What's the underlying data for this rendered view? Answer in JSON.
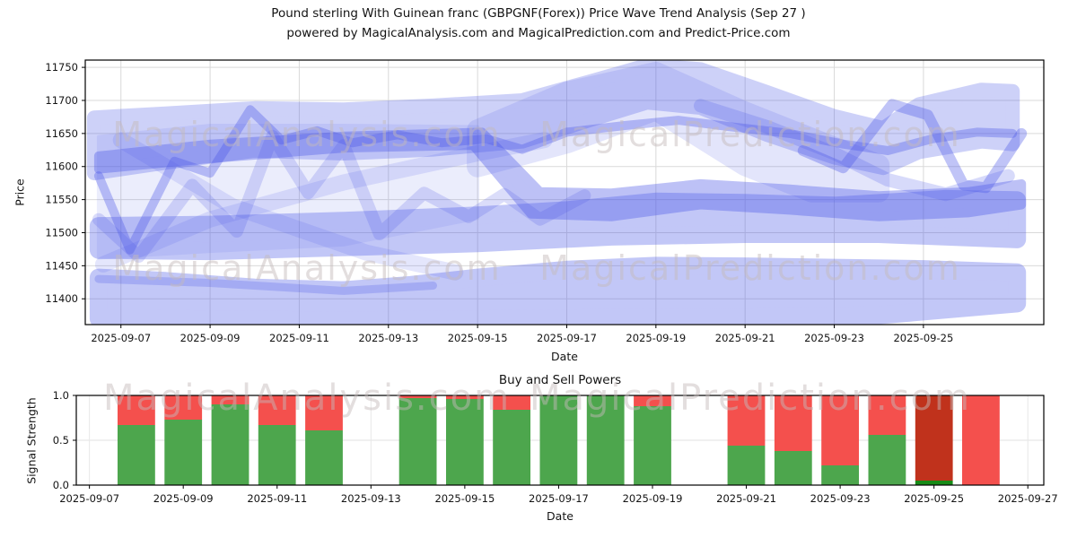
{
  "title": {
    "line1": "Pound sterling With Guinean franc (GBPGNF(Forex)) Price Wave Trend Analysis (Sep 27 )",
    "line2": "powered by MagicalAnalysis.com and MagicalPrediction.com and Predict-Price.com"
  },
  "watermarks": {
    "analysis": "MagicalAnalysis.com",
    "prediction": "MagicalPrediction.com"
  },
  "chart_data": [
    {
      "type": "area",
      "name": "price-wave-trend",
      "ylabel": "Price",
      "xlabel": "Date",
      "grid": true,
      "ylim": [
        11361,
        11761
      ],
      "xlim_days": [
        6.2,
        27.7
      ],
      "yticks": [
        11400,
        11450,
        11500,
        11550,
        11600,
        11650,
        11700,
        11750
      ],
      "xtick_days": [
        7,
        9,
        11,
        13,
        15,
        17,
        19,
        21,
        23,
        25
      ],
      "xtick_labels": [
        "2025-09-07",
        "2025-09-09",
        "2025-09-11",
        "2025-09-13",
        "2025-09-15",
        "2025-09-17",
        "2025-09-19",
        "2025-09-21",
        "2025-09-23",
        "2025-09-25"
      ],
      "band_color": "#4a57e8",
      "bands": [
        {
          "kind": "area",
          "opacity": 0.1,
          "lw": 4,
          "top": [
            [
              6.5,
              11645
            ],
            [
              9,
              11662
            ],
            [
              12,
              11662
            ],
            [
              15,
              11660
            ]
          ],
          "bottom": [
            [
              6.5,
              11462
            ],
            [
              9,
              11472
            ],
            [
              12,
              11482
            ],
            [
              15,
              11522
            ]
          ]
        },
        {
          "kind": "area",
          "opacity": 0.15,
          "lw": 24,
          "top": [
            [
              15,
              11655
            ],
            [
              17,
              11712
            ],
            [
              19,
              11742
            ],
            [
              21,
              11682
            ],
            [
              22.5,
              11642
            ],
            [
              24,
              11602
            ]
          ],
          "bottom": [
            [
              15,
              11600
            ],
            [
              17,
              11636
            ],
            [
              19,
              11686
            ],
            [
              21,
              11602
            ],
            [
              22.5,
              11562
            ],
            [
              24,
              11562
            ]
          ]
        },
        {
          "kind": "area",
          "opacity": 0.33,
          "lw": 20,
          "top": [
            [
              6.5,
              11432
            ],
            [
              8,
              11427
            ],
            [
              10,
              11417
            ],
            [
              12,
              11413
            ],
            [
              13.5,
              11421
            ],
            [
              15,
              11432
            ],
            [
              17,
              11444
            ],
            [
              19,
              11450
            ],
            [
              21,
              11449
            ],
            [
              23,
              11447
            ],
            [
              25,
              11445
            ],
            [
              27.1,
              11440
            ]
          ],
          "bottom": [
            [
              6.5,
              11370
            ],
            [
              9,
              11369
            ],
            [
              12,
              11367
            ],
            [
              15,
              11369
            ],
            [
              18,
              11371
            ],
            [
              21,
              11373
            ],
            [
              24,
              11375
            ],
            [
              27.1,
              11393
            ]
          ]
        },
        {
          "kind": "area",
          "opacity": 0.33,
          "lw": 20,
          "top": [
            [
              6.5,
              11510
            ],
            [
              9,
              11512
            ],
            [
              12,
              11518
            ],
            [
              15,
              11526
            ],
            [
              17,
              11534
            ],
            [
              19,
              11547
            ],
            [
              21,
              11545
            ],
            [
              23,
              11541
            ],
            [
              25.5,
              11551
            ],
            [
              27.1,
              11549
            ]
          ],
          "bottom": [
            [
              6.5,
              11474
            ],
            [
              9,
              11472
            ],
            [
              12,
              11478
            ],
            [
              15,
              11484
            ],
            [
              18,
              11494
            ],
            [
              21,
              11498
            ],
            [
              24,
              11498
            ],
            [
              27.1,
              11490
            ]
          ]
        },
        {
          "kind": "area",
          "opacity": 0.36,
          "lw": 10,
          "top": [
            [
              6.5,
              11616
            ],
            [
              9,
              11634
            ],
            [
              12,
              11646
            ],
            [
              15.1,
              11652
            ],
            [
              16.4,
              11562
            ],
            [
              18,
              11560
            ],
            [
              20,
              11574
            ],
            [
              22,
              11566
            ],
            [
              24,
              11556
            ],
            [
              26,
              11562
            ],
            [
              27.2,
              11574
            ]
          ],
          "bottom": [
            [
              6.5,
              11596
            ],
            [
              9,
              11612
            ],
            [
              12,
              11628
            ],
            [
              14.9,
              11632
            ],
            [
              16.2,
              11528
            ],
            [
              18,
              11524
            ],
            [
              20,
              11542
            ],
            [
              22,
              11534
            ],
            [
              24,
              11524
            ],
            [
              26,
              11530
            ],
            [
              27.2,
              11542
            ]
          ]
        },
        {
          "kind": "area",
          "opacity": 0.27,
          "lw": 16,
          "top": [
            [
              6.4,
              11674
            ],
            [
              8,
              11680
            ],
            [
              10,
              11688
            ],
            [
              12,
              11686
            ],
            [
              14,
              11692
            ],
            [
              16,
              11700
            ],
            [
              17.5,
              11728
            ],
            [
              18.8,
              11753
            ],
            [
              20,
              11747
            ],
            [
              21.5,
              11712
            ],
            [
              23,
              11676
            ],
            [
              24.1,
              11658
            ],
            [
              24.9,
              11694
            ],
            [
              26.3,
              11716
            ],
            [
              27,
              11714
            ]
          ],
          "bottom": [
            [
              6.4,
              11590
            ],
            [
              8,
              11606
            ],
            [
              10,
              11624
            ],
            [
              12,
              11620
            ],
            [
              14,
              11626
            ],
            [
              16,
              11638
            ],
            [
              17.5,
              11670
            ],
            [
              18.8,
              11697
            ],
            [
              20,
              11689
            ],
            [
              21.5,
              11648
            ],
            [
              23,
              11614
            ],
            [
              24.1,
              11598
            ],
            [
              24.9,
              11622
            ],
            [
              26.3,
              11638
            ],
            [
              27,
              11634
            ]
          ]
        },
        {
          "kind": "line",
          "opacity": 0.15,
          "lw": 18,
          "points": [
            [
              6.6,
              11452
            ],
            [
              9,
              11520
            ],
            [
              12,
              11576
            ],
            [
              15,
              11620
            ],
            [
              16.5,
              11640
            ]
          ]
        },
        {
          "kind": "line",
          "opacity": 0.15,
          "lw": 18,
          "points": [
            [
              7,
              11640
            ],
            [
              9.5,
              11540
            ],
            [
              12.5,
              11470
            ],
            [
              14.5,
              11440
            ]
          ]
        },
        {
          "kind": "line",
          "opacity": 0.2,
          "lw": 14,
          "points": [
            [
              6.5,
              11520
            ],
            [
              7.4,
              11464
            ],
            [
              8.6,
              11572
            ],
            [
              9.6,
              11502
            ],
            [
              10.4,
              11646
            ],
            [
              11.2,
              11560
            ],
            [
              12,
              11632
            ],
            [
              12.8,
              11498
            ],
            [
              13.8,
              11560
            ],
            [
              14.8,
              11524
            ],
            [
              15.6,
              11558
            ],
            [
              16.4,
              11520
            ],
            [
              17.4,
              11556
            ]
          ]
        },
        {
          "kind": "line",
          "opacity": 0.25,
          "lw": 9,
          "points": [
            [
              6.5,
              11430
            ],
            [
              9,
              11424
            ],
            [
              12,
              11412
            ],
            [
              14,
              11420
            ]
          ]
        },
        {
          "kind": "line",
          "opacity": 0.35,
          "lw": 10,
          "points": [
            [
              6.5,
              11586
            ],
            [
              7.2,
              11474
            ],
            [
              8.2,
              11608
            ],
            [
              9,
              11590
            ],
            [
              9.9,
              11686
            ],
            [
              10.6,
              11640
            ],
            [
              11.4,
              11654
            ],
            [
              12.2,
              11636
            ],
            [
              13.2,
              11648
            ],
            [
              14.2,
              11636
            ],
            [
              15.2,
              11642
            ],
            [
              16,
              11626
            ],
            [
              17,
              11652
            ],
            [
              18.3,
              11662
            ],
            [
              19.5,
              11670
            ],
            [
              20.7,
              11660
            ],
            [
              22,
              11650
            ],
            [
              23.2,
              11634
            ],
            [
              24.2,
              11624
            ],
            [
              25.2,
              11642
            ],
            [
              26.2,
              11652
            ],
            [
              27,
              11650
            ]
          ]
        },
        {
          "kind": "line",
          "opacity": 0.22,
          "lw": 15,
          "points": [
            [
              20,
              11692
            ],
            [
              21.5,
              11660
            ],
            [
              23,
              11620
            ],
            [
              24.2,
              11580
            ],
            [
              25.5,
              11558
            ],
            [
              26.9,
              11586
            ]
          ]
        },
        {
          "kind": "line",
          "opacity": 0.35,
          "lw": 12,
          "points": [
            [
              22.3,
              11624
            ],
            [
              23.2,
              11598
            ],
            [
              24.3,
              11694
            ],
            [
              25.1,
              11678
            ],
            [
              25.9,
              11572
            ],
            [
              26.4,
              11568
            ],
            [
              27.2,
              11650
            ]
          ]
        }
      ]
    },
    {
      "type": "bar",
      "name": "buy-and-sell-powers",
      "title": "Buy and Sell Powers",
      "ylabel": "Signal Strength",
      "xlabel": "Date",
      "stacked": true,
      "ylim": [
        0,
        1.0
      ],
      "xlim_days": [
        6.72,
        27.34
      ],
      "yticks": [
        "0.0",
        "0.5",
        "1.0"
      ],
      "ytick_values": [
        0,
        0.5,
        1.0
      ],
      "xtick_days": [
        7,
        9,
        11,
        13,
        15,
        17,
        19,
        21,
        23,
        25,
        27
      ],
      "xtick_labels": [
        "2025-09-07",
        "2025-09-09",
        "2025-09-11",
        "2025-09-13",
        "2025-09-15",
        "2025-09-17",
        "2025-09-19",
        "2025-09-21",
        "2025-09-23",
        "2025-09-25",
        "2025-09-27"
      ],
      "bar_width_days": 0.8,
      "categories": [
        "2025-09-08",
        "2025-09-09",
        "2025-09-10",
        "2025-09-11",
        "2025-09-12",
        "2025-09-14",
        "2025-09-15",
        "2025-09-16",
        "2025-09-17",
        "2025-09-18",
        "2025-09-19",
        "2025-09-21",
        "2025-09-22",
        "2025-09-23",
        "2025-09-24",
        "2025-09-25",
        "2025-09-26"
      ],
      "days": [
        8,
        9,
        10,
        11,
        12,
        14,
        15,
        16,
        17,
        18,
        19,
        21,
        22,
        23,
        24,
        25,
        26
      ],
      "series": [
        {
          "name": "Buy",
          "color": "#4da64d",
          "values": [
            0.67,
            0.73,
            0.9,
            0.67,
            0.61,
            0.97,
            0.96,
            0.84,
            1.0,
            1.0,
            0.88,
            0.44,
            0.38,
            0.22,
            0.56,
            0.05,
            0.0
          ]
        },
        {
          "name": "Sell",
          "color": "#f4504d",
          "values": [
            0.33,
            0.27,
            0.1,
            0.33,
            0.39,
            0.03,
            0.04,
            0.16,
            0.0,
            0.0,
            0.12,
            0.56,
            0.62,
            0.78,
            0.44,
            0.95,
            1.0
          ]
        }
      ],
      "color_overrides": {
        "15": {
          "Buy": "#178b17",
          "Sell": "#c0321c"
        }
      }
    }
  ]
}
